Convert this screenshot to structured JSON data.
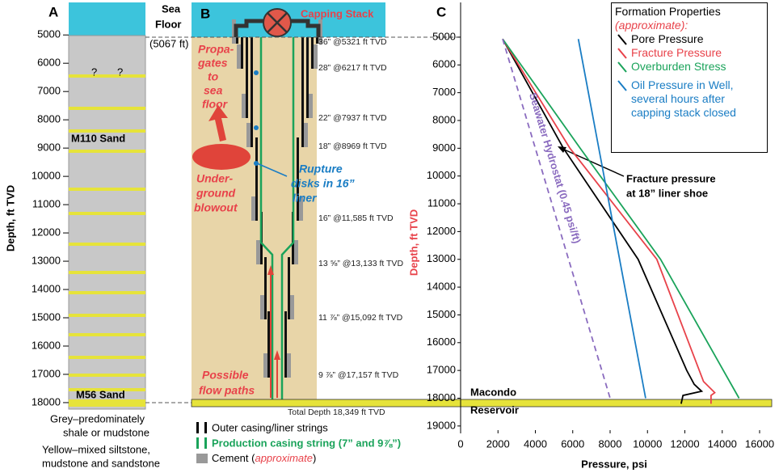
{
  "chart_data": {
    "type": "line",
    "panel_label": "C",
    "x_label": "Pressure, psi",
    "y_label": "Depth, ft TVD",
    "legend_title": "Formation Properties",
    "legend_note": "(approximate):",
    "xlim": [
      0,
      16000
    ],
    "xticks": [
      0,
      2000,
      4000,
      6000,
      8000,
      10000,
      12000,
      14000,
      16000
    ],
    "ylim": [
      3750,
      19150
    ],
    "yticks": [
      5000,
      6000,
      7000,
      8000,
      9000,
      10000,
      11000,
      12000,
      13000,
      14000,
      15000,
      16000,
      17000,
      18000,
      19000
    ],
    "y_inverted": true,
    "series": [
      {
        "name": "Pore Pressure",
        "color": "#000000",
        "values": [
          2250,
          5500,
          9500,
          12100,
          12500,
          12900,
          11900,
          11800
        ],
        "depth": [
          5067,
          9000,
          13000,
          17000,
          17500,
          17750,
          17900,
          18200
        ]
      },
      {
        "name": "Fracture Pressure",
        "color": "#e8424a",
        "values": [
          2250,
          5850,
          10500,
          13000,
          13600,
          13400,
          13400
        ],
        "depth": [
          5067,
          9000,
          13000,
          17400,
          17800,
          17900,
          18200
        ]
      },
      {
        "name": "Overburden Stress",
        "color": "#1aa35a",
        "values": [
          2250,
          6400,
          10700,
          14900
        ],
        "depth": [
          5067,
          9000,
          13000,
          18000
        ]
      },
      {
        "name": "Oil Pressure in Well, several hours after capping stack closed",
        "color": "#1a7dc4",
        "values": [
          6300,
          9900
        ],
        "depth": [
          5067,
          18000
        ]
      },
      {
        "name": "Seawater Hydrostat (0.45 psi/ft)",
        "color": "#8a6bbf",
        "values": [
          2250,
          8000
        ],
        "depth": [
          5067,
          18000
        ],
        "dashed": true,
        "legend": false
      }
    ],
    "annotation": [
      "Fracture pressure",
      "at 18” liner shoe"
    ],
    "reservoir": [
      "Macondo",
      "Reservoir"
    ]
  },
  "panel_a": {
    "panel_label": "A",
    "y_label": "Depth, ft TVD",
    "ylim": [
      3850,
      18230
    ],
    "yticks": [
      5000,
      6000,
      7000,
      8000,
      9000,
      10000,
      11000,
      12000,
      13000,
      14000,
      15000,
      16000,
      17000,
      18000
    ],
    "unknowns": [
      "?",
      "?"
    ],
    "sands": [
      "M110 Sand",
      "M56 Sand"
    ],
    "sea_floor": [
      "Sea",
      "Floor"
    ],
    "sea_floor_depth": "(5067 ft)",
    "notes": [
      [
        "Grey–predominately",
        "shale or mudstone"
      ],
      [
        "Yellow–mixed siltstone,",
        "mudstone and sandstone"
      ]
    ]
  },
  "panel_b": {
    "panel_label": "B",
    "capping": "Capping Stack",
    "casings": [
      "36” @5321 ft TVD",
      "28” @6217 ft TVD",
      "22” @7937 ft TVD",
      "18” @8969 ft TVD",
      "16” @11,585 ft TVD",
      "13 ⅝” @13,133 ft TVD",
      "11 ⅞” @15,092 ft TVD",
      "9 ⅞” @17,157 ft TVD"
    ],
    "total_depth": "Total Depth 18,349 ft TVD",
    "propagates": [
      "Propa-",
      "gates",
      "to",
      "sea",
      "floor"
    ],
    "blowout": [
      "Under-",
      "ground",
      "blowout"
    ],
    "rupture": [
      "Rupture",
      "disks in 16”",
      "liner"
    ],
    "flow": [
      "Possible",
      "flow paths"
    ],
    "legend": [
      "Outer casing/liner strings",
      "Production casing string (7” and 9⅞”)",
      "Cement (",
      "approximate",
      ")"
    ]
  }
}
